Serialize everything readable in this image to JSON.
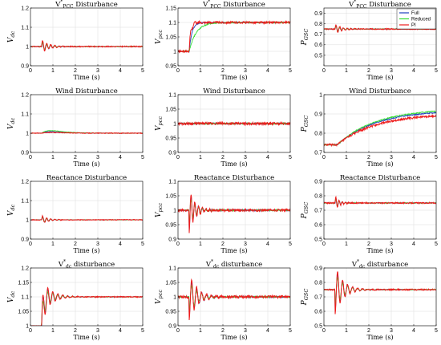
{
  "legend": {
    "entries": [
      {
        "name": "Full",
        "color": "#1f3fbf"
      },
      {
        "name": "Reduced",
        "color": "#33dd33"
      },
      {
        "name": "PI",
        "color": "#ee1c1c"
      }
    ],
    "placement": "top-right of top-right panel"
  },
  "chart_data": [
    {
      "id": "p11",
      "type": "line",
      "title": "V*PCC Disturbance",
      "title_parts": {
        "main": "V",
        "sub": "PCC",
        "sup": "*",
        "rest": " Disturbance"
      },
      "ylabel": "Vdc",
      "ylabel_parts": {
        "main": "V",
        "sub": "dc"
      },
      "xlabel": "Time (s)",
      "xlim": [
        0,
        5
      ],
      "ylim": [
        0.9,
        1.2
      ],
      "xticks": [
        "0",
        "1",
        "2",
        "3",
        "4",
        "5"
      ],
      "yticks": [
        "0.9",
        "1",
        "1.1",
        "1.2"
      ],
      "grid": true,
      "response": "osc",
      "base": 1.0,
      "amp": 0.03,
      "decay": 3.2,
      "freq": 5.5,
      "noise": 0.003
    },
    {
      "id": "p12",
      "type": "line",
      "title": "V*PCC Disturbance",
      "title_parts": {
        "main": "V",
        "sub": "PCC",
        "sup": "*",
        "rest": " Disturbance"
      },
      "ylabel": "Vpcc",
      "ylabel_parts": {
        "main": "V",
        "sub": "pcc"
      },
      "xlabel": "Time (s)",
      "xlim": [
        0,
        5
      ],
      "ylim": [
        0.95,
        1.15
      ],
      "xticks": [
        "0",
        "1",
        "2",
        "3",
        "4",
        "5"
      ],
      "yticks": [
        "0.95",
        "1",
        "1.05",
        "1.1",
        "1.15"
      ],
      "grid": true,
      "response": "rise",
      "start": 1.0,
      "end": 1.1,
      "t0": 0.5,
      "noise": 0.004
    },
    {
      "id": "p13",
      "type": "line",
      "title": "V*PCC Disturbance",
      "title_parts": {
        "main": "V",
        "sub": "PCC",
        "sup": "*",
        "rest": " Disturbance"
      },
      "ylabel": "PGSC",
      "ylabel_parts": {
        "main": "P",
        "sub": "GSC"
      },
      "xlabel": "Time (s)",
      "xlim": [
        0,
        5
      ],
      "ylim": [
        0.4,
        0.95
      ],
      "xticks": [
        "0",
        "1",
        "2",
        "3",
        "4",
        "5"
      ],
      "yticks": [
        "0.5",
        "0.6",
        "0.7",
        "0.8",
        "0.9"
      ],
      "grid": true,
      "legend": true,
      "response": "osc",
      "base": 0.75,
      "amp": 0.04,
      "decay": 3.5,
      "freq": 6,
      "noise": 0.006
    },
    {
      "id": "p21",
      "type": "line",
      "title": "Wind Disturbance",
      "title_parts": {
        "main": "Wind Disturbance",
        "sub": "",
        "sup": "",
        "rest": ""
      },
      "ylabel": "Vdc",
      "ylabel_parts": {
        "main": "V",
        "sub": "dc"
      },
      "xlabel": "Time (s)",
      "xlim": [
        0,
        5
      ],
      "ylim": [
        0.9,
        1.2
      ],
      "xticks": [
        "0",
        "1",
        "2",
        "3",
        "4",
        "5"
      ],
      "yticks": [
        "0.9",
        "1",
        "1.1",
        "1.2"
      ],
      "grid": true,
      "response": "bump",
      "base": 1.0,
      "amp": 0.015,
      "noise": 0.002
    },
    {
      "id": "p22",
      "type": "line",
      "title": "Wind Disturbance",
      "title_parts": {
        "main": "Wind Disturbance",
        "sub": "",
        "sup": "",
        "rest": ""
      },
      "ylabel": "Vpcc",
      "ylabel_parts": {
        "main": "V",
        "sub": "pcc"
      },
      "xlabel": "Time (s)",
      "xlim": [
        0,
        5
      ],
      "ylim": [
        0.9,
        1.1
      ],
      "xticks": [
        "0",
        "1",
        "2",
        "3",
        "4",
        "5"
      ],
      "yticks": [
        "0.9",
        "0.95",
        "1",
        "1.05",
        "1.1"
      ],
      "grid": true,
      "response": "flat",
      "base": 1.0,
      "noise": 0.005
    },
    {
      "id": "p23",
      "type": "line",
      "title": "Wind Disturbance",
      "title_parts": {
        "main": "Wind Disturbance",
        "sub": "",
        "sup": "",
        "rest": ""
      },
      "ylabel": "PGSC",
      "ylabel_parts": {
        "main": "P",
        "sub": "GSC"
      },
      "xlabel": "Time (s)",
      "xlim": [
        0,
        5
      ],
      "ylim": [
        0.7,
        1.0
      ],
      "xticks": [
        "0",
        "1",
        "2",
        "3",
        "4",
        "5"
      ],
      "yticks": [
        "0.7",
        "0.8",
        "0.9",
        "1"
      ],
      "grid": true,
      "response": "ramp",
      "start": 0.74,
      "end": 0.92,
      "t0": 0.6,
      "noise": 0.006
    },
    {
      "id": "p31",
      "type": "line",
      "title": "Reactance Disturbance",
      "title_parts": {
        "main": "Reactance Disturbance",
        "sub": "",
        "sup": "",
        "rest": ""
      },
      "ylabel": "Vdc",
      "ylabel_parts": {
        "main": "V",
        "sub": "dc"
      },
      "xlabel": "Time (s)",
      "xlim": [
        0,
        5
      ],
      "ylim": [
        0.9,
        1.2
      ],
      "xticks": [
        "0",
        "1",
        "2",
        "3",
        "4",
        "5"
      ],
      "yticks": [
        "0.9",
        "1",
        "1.1",
        "1.2"
      ],
      "grid": true,
      "response": "osc",
      "base": 1.0,
      "amp": 0.02,
      "decay": 3.5,
      "freq": 5.5,
      "noise": 0.002
    },
    {
      "id": "p32",
      "type": "line",
      "title": "Reactance Disturbance",
      "title_parts": {
        "main": "Reactance Disturbance",
        "sub": "",
        "sup": "",
        "rest": ""
      },
      "ylabel": "Vpcc",
      "ylabel_parts": {
        "main": "V",
        "sub": "pcc"
      },
      "xlabel": "Time (s)",
      "xlim": [
        0,
        5
      ],
      "ylim": [
        0.9,
        1.1
      ],
      "xticks": [
        "0",
        "1",
        "2",
        "3",
        "4",
        "5"
      ],
      "yticks": [
        "0.9",
        "0.95",
        "1",
        "1.05",
        "1.1"
      ],
      "grid": true,
      "response": "spike",
      "base": 1.0,
      "amp": -0.07,
      "decay": 4,
      "freq": 6,
      "noise": 0.005
    },
    {
      "id": "p33",
      "type": "line",
      "title": "Reactance Disturbance",
      "title_parts": {
        "main": "Reactance Disturbance",
        "sub": "",
        "sup": "",
        "rest": ""
      },
      "ylabel": "PGSC",
      "ylabel_parts": {
        "main": "P",
        "sub": "GSC"
      },
      "xlabel": "Time (s)",
      "xlim": [
        0,
        5
      ],
      "ylim": [
        0.5,
        0.9
      ],
      "xticks": [
        "0",
        "1",
        "2",
        "3",
        "4",
        "5"
      ],
      "yticks": [
        "0.5",
        "0.6",
        "0.7",
        "0.8",
        "0.9"
      ],
      "grid": true,
      "response": "osc",
      "base": 0.75,
      "amp": 0.04,
      "decay": 5,
      "freq": 7,
      "noise": 0.005
    },
    {
      "id": "p41",
      "type": "line",
      "title": "V*dc disturbance",
      "title_parts": {
        "main": "V",
        "sub": "dc",
        "sup": "*",
        "rest": " disturbance"
      },
      "ylabel": "Vdc",
      "ylabel_parts": {
        "main": "V",
        "sub": "dc"
      },
      "xlabel": "Time (s)",
      "xlim": [
        0,
        5
      ],
      "ylim": [
        1.0,
        1.2
      ],
      "xticks": [
        "0",
        "1",
        "2",
        "3",
        "4",
        "5"
      ],
      "yticks": [
        "1",
        "1.05",
        "1.1",
        "1.15",
        "1.2"
      ],
      "grid": true,
      "response": "stepOsc",
      "start": 1.0,
      "end": 1.1,
      "t0": 0.5,
      "amp": 0.06,
      "decay": 2.6,
      "freq": 4.5,
      "noise": 0.002
    },
    {
      "id": "p42",
      "type": "line",
      "title": "V*dc disturbance",
      "title_parts": {
        "main": "V",
        "sub": "dc",
        "sup": "*",
        "rest": " disturbance"
      },
      "ylabel": "Vpcc",
      "ylabel_parts": {
        "main": "V",
        "sub": "pcc"
      },
      "xlabel": "Time (s)",
      "xlim": [
        0,
        5
      ],
      "ylim": [
        0.9,
        1.1
      ],
      "xticks": [
        "0",
        "1",
        "2",
        "3",
        "4",
        "5"
      ],
      "yticks": [
        "0.9",
        "0.95",
        "1",
        "1.05",
        "1.1"
      ],
      "grid": true,
      "response": "spike",
      "base": 1.0,
      "amp": -0.07,
      "decay": 2.8,
      "freq": 4.5,
      "noise": 0.005
    },
    {
      "id": "p43",
      "type": "line",
      "title": "V*dc disturbance",
      "title_parts": {
        "main": "V",
        "sub": "dc",
        "sup": "*",
        "rest": " disturbance"
      },
      "ylabel": "PGSC",
      "ylabel_parts": {
        "main": "P",
        "sub": "GSC"
      },
      "xlabel": "Time (s)",
      "xlim": [
        0,
        5
      ],
      "ylim": [
        0.5,
        0.9
      ],
      "xticks": [
        "0",
        "1",
        "2",
        "3",
        "4",
        "5"
      ],
      "yticks": [
        "0.5",
        "0.6",
        "0.7",
        "0.8",
        "0.9"
      ],
      "grid": true,
      "response": "spike",
      "base": 0.75,
      "amp": -0.15,
      "decay": 2.8,
      "freq": 4.5,
      "noise": 0.005
    }
  ]
}
